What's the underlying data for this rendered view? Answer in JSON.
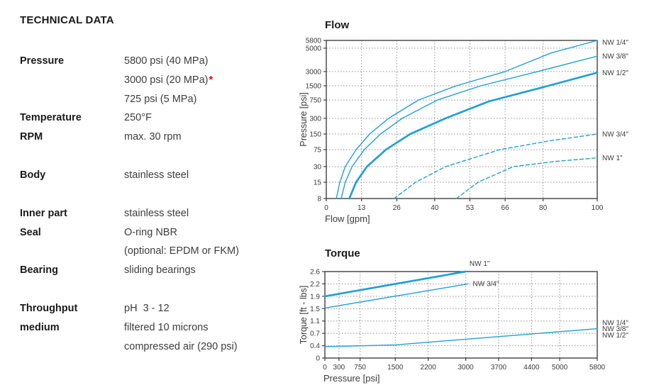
{
  "page": {
    "background": "#ffffff"
  },
  "technical_data": {
    "title": "TECHNICAL DATA",
    "accent_red": "#e30613",
    "groups": [
      {
        "rows": [
          {
            "label_lines": [
              "Pressure"
            ],
            "value_lines": [
              {
                "text": "5800 psi (40 MPa)"
              },
              {
                "text": "3000 psi (20 MPa)",
                "mark": "*"
              },
              {
                "text": "725 psi (5 MPa)"
              }
            ]
          },
          {
            "label_lines": [
              "Temperature"
            ],
            "value_lines": [
              {
                "text": "250°F"
              }
            ]
          },
          {
            "label_lines": [
              "RPM"
            ],
            "value_lines": [
              {
                "text": "max. 30 rpm"
              }
            ]
          }
        ]
      },
      {
        "rows": [
          {
            "label_lines": [
              "Body"
            ],
            "value_lines": [
              {
                "text": "stainless steel"
              }
            ]
          }
        ]
      },
      {
        "rows": [
          {
            "label_lines": [
              "Inner part"
            ],
            "value_lines": [
              {
                "text": "stainless steel"
              }
            ]
          },
          {
            "label_lines": [
              "Seal"
            ],
            "value_lines": [
              {
                "text": "O-ring NBR"
              },
              {
                "text": "(optional: EPDM or FKM)"
              }
            ]
          },
          {
            "label_lines": [
              "Bearing"
            ],
            "value_lines": [
              {
                "text": "sliding bearings"
              }
            ]
          }
        ]
      },
      {
        "rows": [
          {
            "label_lines": [
              "Throughput",
              "medium"
            ],
            "value_lines": [
              {
                "text": "pH  3 - 12"
              },
              {
                "text": "filtered 10 microns"
              },
              {
                "text": "compressed air (290 psi)"
              }
            ]
          }
        ]
      }
    ]
  },
  "chart_data": [
    {
      "type": "line",
      "title": "Flow",
      "xlabel": "Flow [gpm]",
      "ylabel": "Pressure [psi]",
      "xlim": [
        0,
        100
      ],
      "x_ticks": [
        0,
        13,
        26,
        40,
        53,
        66,
        80,
        100
      ],
      "y_ticks": [
        5800,
        5000,
        3000,
        1500,
        750,
        300,
        150,
        75,
        30,
        15,
        8
      ],
      "y_scale": "log-like",
      "grid": true,
      "legend_position": "labels at right edge",
      "line_color": "#219fd8",
      "series": [
        {
          "name": "NW 1/4\"",
          "style": "solid-thin",
          "points": [
            [
              3.7,
              8
            ],
            [
              5,
              15
            ],
            [
              7,
              30
            ],
            [
              11,
              75
            ],
            [
              16,
              150
            ],
            [
              23,
              300
            ],
            [
              34,
              750
            ],
            [
              48,
              1500
            ],
            [
              66,
              3000
            ],
            [
              83,
              4500
            ],
            [
              100,
              5800
            ]
          ]
        },
        {
          "name": "NW 3/8\"",
          "style": "solid-thin",
          "points": [
            [
              5.5,
              8
            ],
            [
              7,
              15
            ],
            [
              9.5,
              30
            ],
            [
              14,
              75
            ],
            [
              20,
              150
            ],
            [
              28,
              300
            ],
            [
              41,
              750
            ],
            [
              57,
              1500
            ],
            [
              78,
              3000
            ],
            [
              100,
              4200
            ]
          ]
        },
        {
          "name": "NW 1/2\"",
          "style": "solid-thick",
          "points": [
            [
              8.5,
              8
            ],
            [
              11,
              15
            ],
            [
              15,
              30
            ],
            [
              22,
              75
            ],
            [
              31,
              150
            ],
            [
              44,
              300
            ],
            [
              60,
              700
            ],
            [
              81,
              1450
            ],
            [
              100,
              2850
            ]
          ]
        },
        {
          "name": "NW 3/4\"",
          "style": "dashed",
          "points": [
            [
              25,
              8
            ],
            [
              33,
              15
            ],
            [
              44,
              30
            ],
            [
              64,
              75
            ],
            [
              82,
              110
            ],
            [
              100,
              150
            ]
          ]
        },
        {
          "name": "NW 1\"",
          "style": "dashed",
          "points": [
            [
              48,
              8
            ],
            [
              56,
              15
            ],
            [
              69,
              30
            ],
            [
              85,
              40
            ],
            [
              100,
              48
            ]
          ]
        }
      ],
      "right_labels": [
        {
          "text": "NW 1/4\"",
          "at": 5600
        },
        {
          "text": "NW 3/8\"",
          "at": 4200
        },
        {
          "text": "NW 1/2\"",
          "at": 2850
        },
        {
          "text": "NW 3/4\"",
          "at": 150
        },
        {
          "text": "NW 1\"",
          "at": 48
        }
      ]
    },
    {
      "type": "line",
      "title": "Torque",
      "xlabel": "Pressure [psi]",
      "ylabel": "Torque [ft - lbs]",
      "xlim": [
        0,
        5800
      ],
      "x_ticks": [
        0,
        300,
        750,
        1500,
        2200,
        3000,
        3700,
        4400,
        5000,
        5800
      ],
      "y_ticks": [
        2.6,
        2.2,
        1.9,
        1.5,
        1.1,
        0.7,
        0.4,
        0
      ],
      "y_scale": "even-ticks",
      "grid": true,
      "legend_position": "labels at line ends",
      "line_color": "#219fd8",
      "series": [
        {
          "name": "NW 1\"",
          "style": "solid-thick",
          "points": [
            [
              0,
              1.9
            ],
            [
              3000,
              2.6
            ]
          ]
        },
        {
          "name": "NW 3/4\"",
          "style": "solid-thin",
          "points": [
            [
              0,
              1.52
            ],
            [
              3050,
              2.2
            ]
          ]
        },
        {
          "name": "NW 1/4\" / NW 3/8\" / NW 1/2\"",
          "style": "solid-thin",
          "points": [
            [
              0,
              0.37
            ],
            [
              1500,
              0.42
            ],
            [
              5800,
              0.85
            ]
          ]
        }
      ],
      "annotations": [
        {
          "text": "NW 1\"",
          "x": 3080,
          "y": 2.6
        },
        {
          "text": "NW 3/4\"",
          "x": 3150,
          "y": 2.2
        }
      ],
      "right_labels": [
        {
          "text": "NW 1/4\"",
          "at": 1.05
        },
        {
          "text": "NW 3/8\"",
          "at": 0.85
        },
        {
          "text": "NW 1/2\"",
          "at": 0.66
        }
      ]
    }
  ]
}
